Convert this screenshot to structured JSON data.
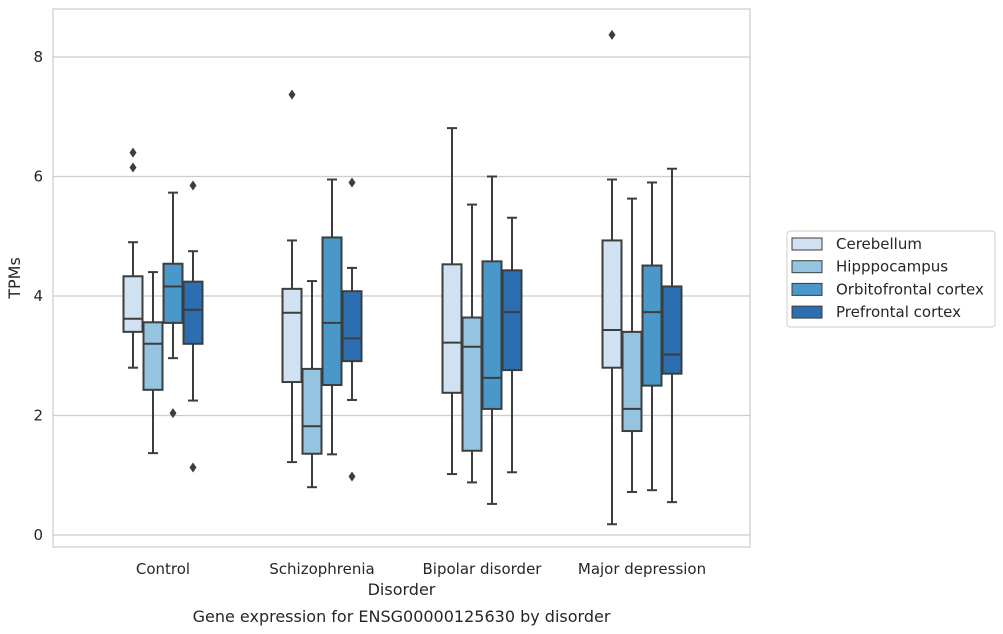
{
  "chart_data": {
    "type": "box",
    "caption": "Gene expression for ENSG00000125630 by disorder",
    "xlabel": "Disorder",
    "ylabel": "TPMs",
    "ylim": [
      -0.2,
      8.8
    ],
    "yticks": [
      0,
      2,
      4,
      6,
      8
    ],
    "grid": true,
    "legend_position": "right",
    "categories": [
      "Control",
      "Schizophrenia",
      "Bipolar disorder",
      "Major depression"
    ],
    "series": [
      {
        "name": "Cerebellum",
        "color": "#d0e1f2",
        "boxes": [
          {
            "whislo": 2.8,
            "q1": 3.4,
            "med": 3.62,
            "q3": 4.33,
            "whishi": 4.9,
            "fliers": [
              6.15,
              6.4
            ]
          },
          {
            "whislo": 1.22,
            "q1": 2.56,
            "med": 3.72,
            "q3": 4.12,
            "whishi": 4.93,
            "fliers": [
              7.37
            ]
          },
          {
            "whislo": 1.02,
            "q1": 2.38,
            "med": 3.22,
            "q3": 4.53,
            "whishi": 6.81,
            "fliers": []
          },
          {
            "whislo": 0.18,
            "q1": 2.8,
            "med": 3.43,
            "q3": 4.93,
            "whishi": 5.95,
            "fliers": [
              8.37
            ]
          }
        ]
      },
      {
        "name": "Hipppocampus",
        "color": "#94c4df",
        "boxes": [
          {
            "whislo": 1.37,
            "q1": 2.43,
            "med": 3.2,
            "q3": 3.56,
            "whishi": 4.4,
            "fliers": []
          },
          {
            "whislo": 0.8,
            "q1": 1.36,
            "med": 1.82,
            "q3": 2.78,
            "whishi": 4.25,
            "fliers": []
          },
          {
            "whislo": 0.88,
            "q1": 1.41,
            "med": 3.15,
            "q3": 3.64,
            "whishi": 5.53,
            "fliers": []
          },
          {
            "whislo": 0.72,
            "q1": 1.74,
            "med": 2.11,
            "q3": 3.4,
            "whishi": 5.63,
            "fliers": []
          }
        ]
      },
      {
        "name": "Orbitofrontal cortex",
        "color": "#4a98c9",
        "boxes": [
          {
            "whislo": 2.96,
            "q1": 3.55,
            "med": 4.16,
            "q3": 4.54,
            "whishi": 5.73,
            "fliers": [
              2.04
            ]
          },
          {
            "whislo": 1.35,
            "q1": 2.51,
            "med": 3.55,
            "q3": 4.98,
            "whishi": 5.95,
            "fliers": []
          },
          {
            "whislo": 0.52,
            "q1": 2.11,
            "med": 2.63,
            "q3": 4.58,
            "whishi": 6.0,
            "fliers": []
          },
          {
            "whislo": 0.75,
            "q1": 2.5,
            "med": 3.73,
            "q3": 4.51,
            "whishi": 5.9,
            "fliers": []
          }
        ]
      },
      {
        "name": "Prefrontal cortex",
        "color": "#2b6fb0",
        "boxes": [
          {
            "whislo": 2.25,
            "q1": 3.2,
            "med": 3.77,
            "q3": 4.24,
            "whishi": 4.75,
            "fliers": [
              5.85,
              1.13
            ]
          },
          {
            "whislo": 2.26,
            "q1": 2.91,
            "med": 3.29,
            "q3": 4.08,
            "whishi": 4.47,
            "fliers": [
              5.9,
              0.98
            ]
          },
          {
            "whislo": 1.05,
            "q1": 2.76,
            "med": 3.73,
            "q3": 4.43,
            "whishi": 5.31,
            "fliers": []
          },
          {
            "whislo": 0.55,
            "q1": 2.7,
            "med": 3.02,
            "q3": 4.16,
            "whishi": 6.13,
            "fliers": []
          }
        ]
      }
    ]
  }
}
